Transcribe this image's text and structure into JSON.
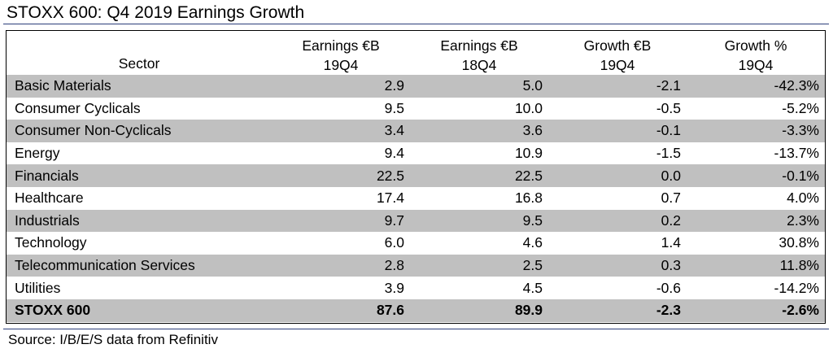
{
  "title": "STOXX 600: Q4 2019 Earnings Growth",
  "source": "Source: I/B/E/S data from Refinitiv",
  "chart_data": {
    "type": "table",
    "title": "STOXX 600: Q4 2019 Earnings Growth",
    "columns": [
      {
        "line1": "",
        "line2": "Sector"
      },
      {
        "line1": "Earnings €B",
        "line2": "19Q4"
      },
      {
        "line1": "Earnings €B",
        "line2": "18Q4"
      },
      {
        "line1": "Growth €B",
        "line2": "19Q4"
      },
      {
        "line1": "Growth %",
        "line2": "19Q4"
      }
    ],
    "rows": [
      {
        "sector": "Basic Materials",
        "earnings_19q4": "2.9",
        "earnings_18q4": "5.0",
        "growth_eur": "-2.1",
        "growth_pct": "-42.3%"
      },
      {
        "sector": "Consumer Cyclicals",
        "earnings_19q4": "9.5",
        "earnings_18q4": "10.0",
        "growth_eur": "-0.5",
        "growth_pct": "-5.2%"
      },
      {
        "sector": "Consumer Non-Cyclicals",
        "earnings_19q4": "3.4",
        "earnings_18q4": "3.6",
        "growth_eur": "-0.1",
        "growth_pct": "-3.3%"
      },
      {
        "sector": "Energy",
        "earnings_19q4": "9.4",
        "earnings_18q4": "10.9",
        "growth_eur": "-1.5",
        "growth_pct": "-13.7%"
      },
      {
        "sector": "Financials",
        "earnings_19q4": "22.5",
        "earnings_18q4": "22.5",
        "growth_eur": "0.0",
        "growth_pct": "-0.1%"
      },
      {
        "sector": "Healthcare",
        "earnings_19q4": "17.4",
        "earnings_18q4": "16.8",
        "growth_eur": "0.7",
        "growth_pct": "4.0%"
      },
      {
        "sector": "Industrials",
        "earnings_19q4": "9.7",
        "earnings_18q4": "9.5",
        "growth_eur": "0.2",
        "growth_pct": "2.3%"
      },
      {
        "sector": "Technology",
        "earnings_19q4": "6.0",
        "earnings_18q4": "4.6",
        "growth_eur": "1.4",
        "growth_pct": "30.8%"
      },
      {
        "sector": "Telecommunication Services",
        "earnings_19q4": "2.8",
        "earnings_18q4": "2.5",
        "growth_eur": "0.3",
        "growth_pct": "11.8%"
      },
      {
        "sector": "Utilities",
        "earnings_19q4": "3.9",
        "earnings_18q4": "4.5",
        "growth_eur": "-0.6",
        "growth_pct": "-14.2%"
      }
    ],
    "total": {
      "sector": "STOXX 600",
      "earnings_19q4": "87.6",
      "earnings_18q4": "89.9",
      "growth_eur": "-2.3",
      "growth_pct": "-2.6%"
    },
    "colors": {
      "shaded_row": "#c0c0c0",
      "rule": "#2a3d7a"
    }
  }
}
